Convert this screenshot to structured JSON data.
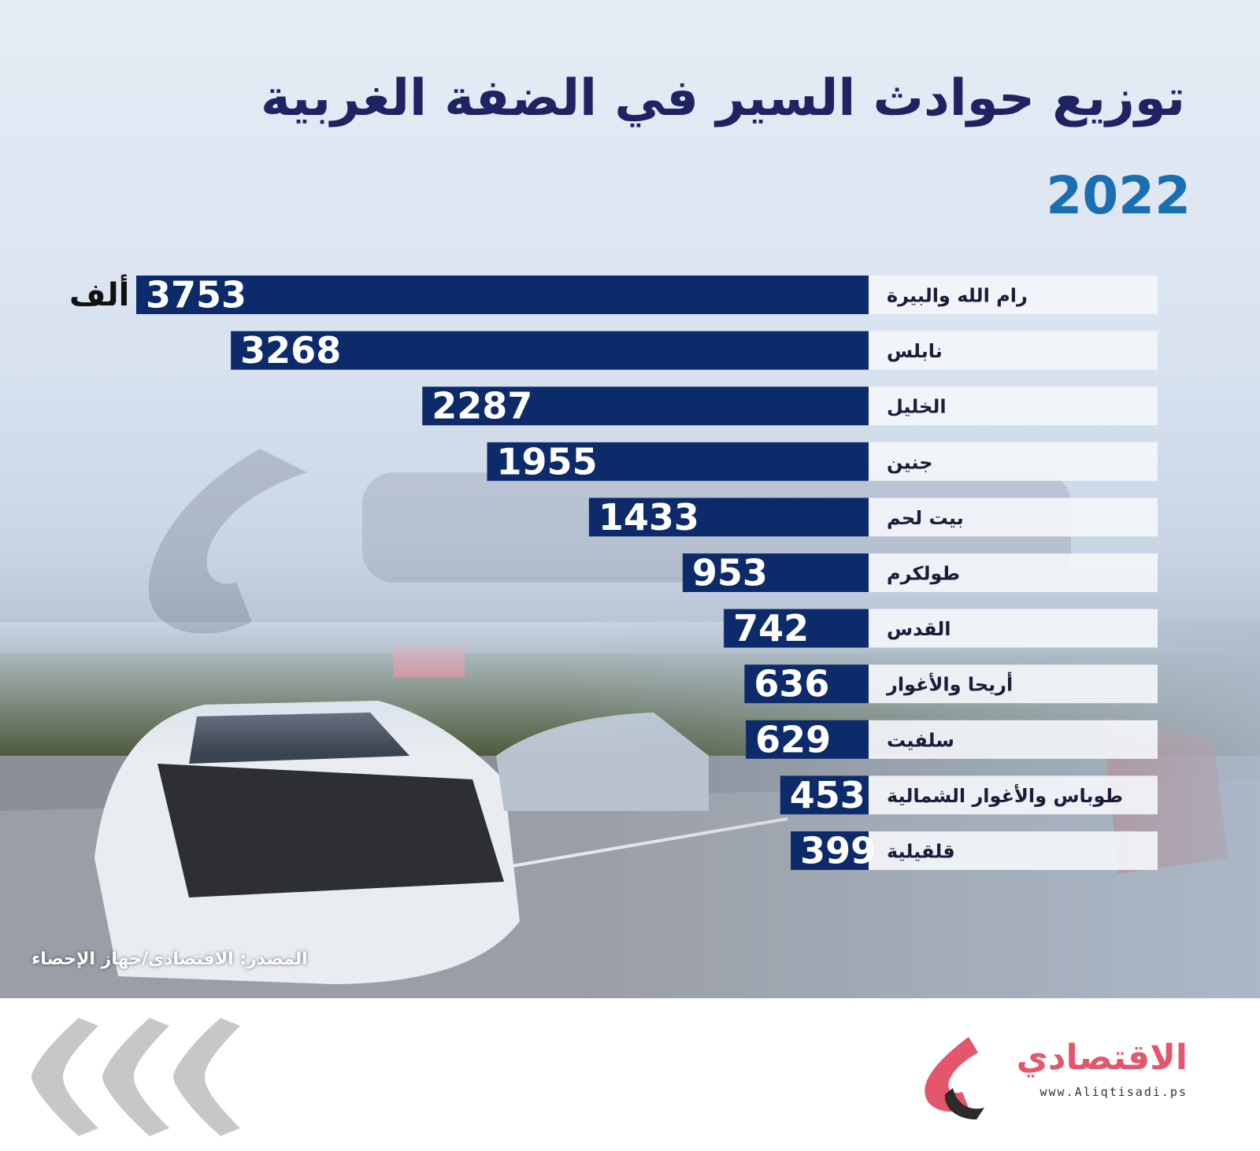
{
  "header": {
    "title": "توزيع حوادث السير في الضفة الغربية",
    "year": "2022"
  },
  "unit_label": "ألف",
  "source": "المصدر: الاقتصادي/جهاز الإحصاء",
  "colors": {
    "bar": "#0d2b6b",
    "track": "#f3f5f9",
    "title": "#1f2363",
    "year": "#1a6fb3",
    "logo": "#e4566b"
  },
  "logo": {
    "name": "الاقتصادي",
    "url": "www.Aliqtisadi.ps"
  },
  "chart_data": {
    "type": "bar",
    "orientation": "horizontal",
    "categories": [
      "رام الله والبيرة",
      "نابلس",
      "الخليل",
      "جنين",
      "بيت لحم",
      "طولكرم",
      "القدس",
      "أريحا والأغوار",
      "سلفيت",
      "طوباس والأغوار الشمالية",
      "قلقيلية"
    ],
    "values": [
      3753,
      3268,
      2287,
      1955,
      1433,
      953,
      742,
      636,
      629,
      453,
      399
    ]
  }
}
